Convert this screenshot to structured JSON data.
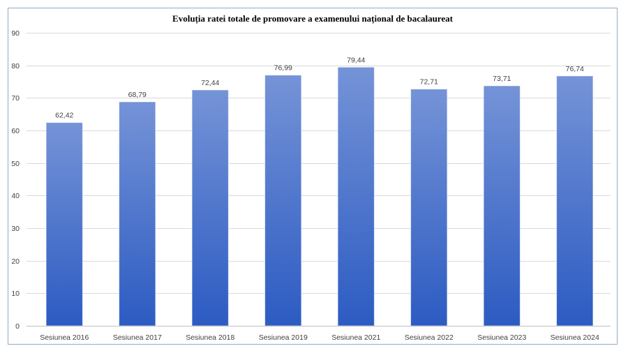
{
  "chart_data": {
    "type": "bar",
    "title": "Evoluția ratei totale de promovare a examenului național de bacalaureat",
    "categories": [
      "Sesiunea 2016",
      "Sesiunea 2017",
      "Sesiunea 2018",
      "Sesiunea 2019",
      "Sesiunea 2021",
      "Sesiunea 2022",
      "Sesiunea 2023",
      "Sesiunea 2024"
    ],
    "values": [
      62.42,
      68.79,
      72.44,
      76.99,
      79.44,
      72.71,
      73.71,
      76.74
    ],
    "data_labels": [
      "62,42",
      "68,79",
      "72,44",
      "76,99",
      "79,44",
      "72,71",
      "73,71",
      "76,74"
    ],
    "ylim": [
      0,
      90
    ],
    "yticks": [
      0,
      10,
      20,
      30,
      40,
      50,
      60,
      70,
      80,
      90
    ],
    "grid": true,
    "legend": false
  },
  "colors": {
    "bar_top": "#7593d7",
    "bar_bottom": "#2c5bc2",
    "gridline": "#d9d9d9",
    "axis": "#bfbfbf",
    "border": "#93abc6"
  }
}
